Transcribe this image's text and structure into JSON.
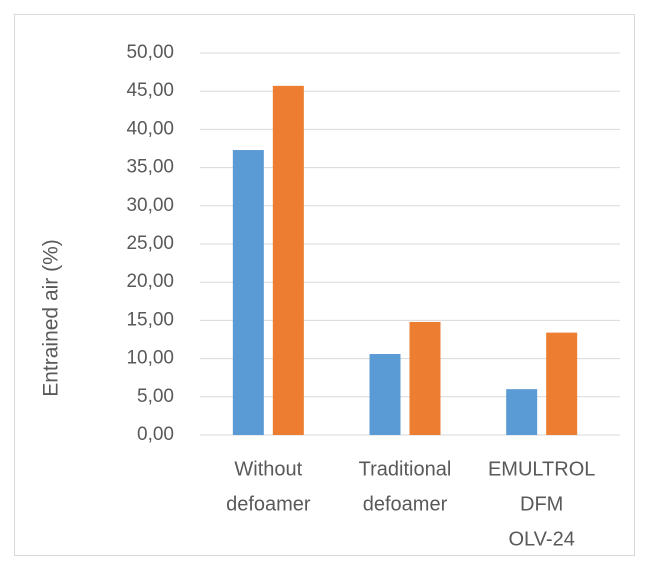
{
  "chart_data": {
    "type": "bar",
    "y_label": "Entrained air (%)",
    "categories": [
      [
        "Without",
        "defoamer"
      ],
      [
        "Traditional",
        "defoamer"
      ],
      [
        "EMULTROL",
        "DFM",
        "OLV-24"
      ]
    ],
    "series": [
      {
        "color": "#5b9bd5",
        "values": [
          37.3,
          10.6,
          6.0
        ]
      },
      {
        "color": "#ed7d31",
        "values": [
          45.7,
          14.8,
          13.4
        ]
      }
    ],
    "ylim": [
      0,
      50
    ],
    "yticks": [
      {
        "value": 0,
        "label": "0,00"
      },
      {
        "value": 5,
        "label": "5,00"
      },
      {
        "value": 10,
        "label": "10,00"
      },
      {
        "value": 15,
        "label": "15,00"
      },
      {
        "value": 20,
        "label": "20,00"
      },
      {
        "value": 25,
        "label": "25,00"
      },
      {
        "value": 30,
        "label": "30,00"
      },
      {
        "value": 35,
        "label": "35,00"
      },
      {
        "value": 40,
        "label": "40,00"
      },
      {
        "value": 45,
        "label": "45,00"
      },
      {
        "value": 50,
        "label": "50,00"
      }
    ],
    "grid": true
  }
}
